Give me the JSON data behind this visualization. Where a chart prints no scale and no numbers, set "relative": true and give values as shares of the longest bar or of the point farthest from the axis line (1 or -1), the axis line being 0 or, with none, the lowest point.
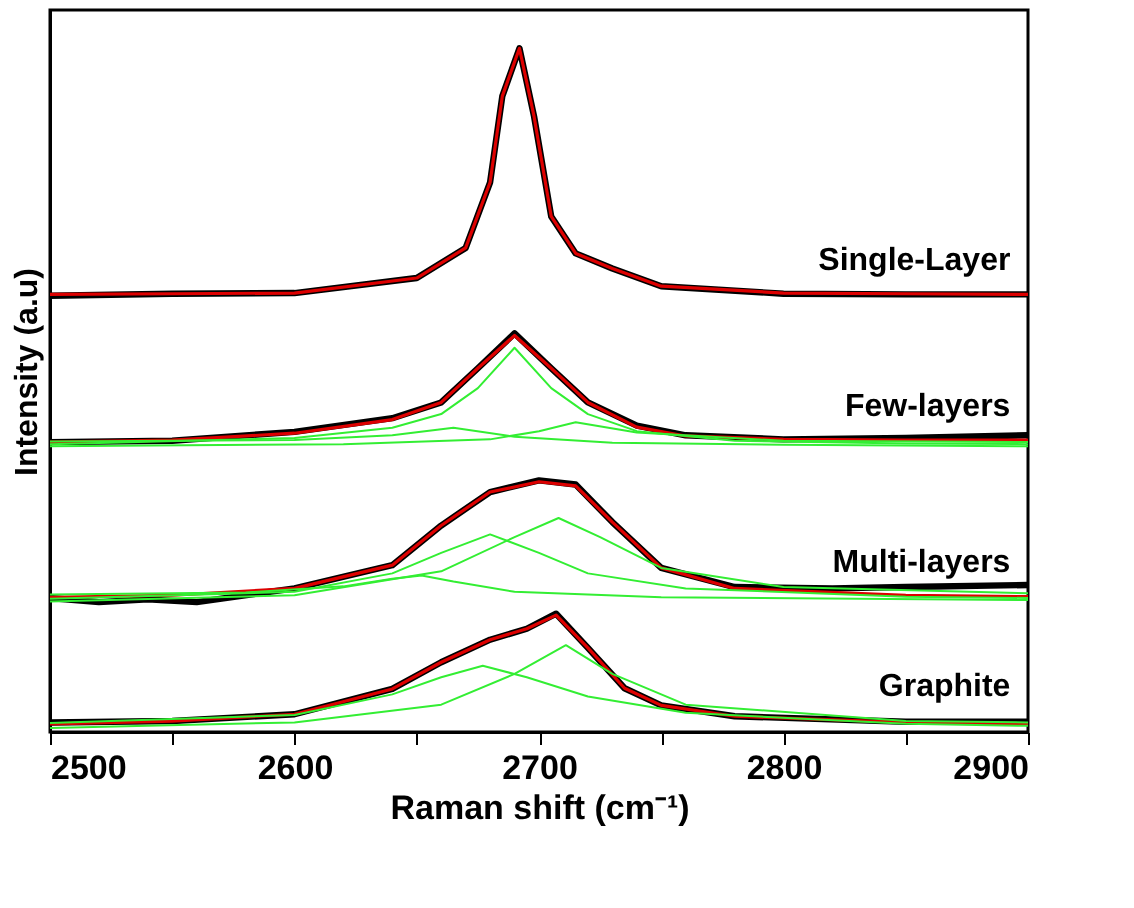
{
  "chart_data": {
    "type": "line",
    "relative": true,
    "xlabel": "Raman shift (cm⁻¹)",
    "ylabel": "Intensity (a.u)",
    "xlim": [
      2500,
      2900
    ],
    "xticks": [
      2500,
      {
        "value": 2550,
        "label": null
      },
      2600,
      {
        "value": 2650,
        "label": null
      },
      2700,
      {
        "value": 2750,
        "label": null
      },
      2800,
      {
        "value": 2850,
        "label": null
      },
      2900
    ],
    "grid": false,
    "legend": false,
    "marker": "none",
    "line_style": "solid",
    "annotations": [
      "Single-Layer",
      "Few-layers",
      "Multi-layers",
      "Graphite"
    ],
    "series": [
      {
        "color": "#000000",
        "x": [
          2500,
          2550,
          2600,
          2650,
          2670,
          2680,
          2685,
          2692,
          2698,
          2705,
          2715,
          2730,
          2750,
          2800,
          2850,
          2900
        ],
        "values": [
          0.638,
          0.641,
          0.642,
          0.664,
          0.708,
          0.804,
          0.93,
          1.0,
          0.9,
          0.754,
          0.7,
          0.678,
          0.652,
          0.641,
          0.64,
          0.64
        ]
      },
      {
        "color": "#000000",
        "x": [
          2500,
          2550,
          2600,
          2640,
          2660,
          2675,
          2690,
          2705,
          2720,
          2740,
          2760,
          2800,
          2850,
          2900
        ],
        "values": [
          0.424,
          0.426,
          0.439,
          0.459,
          0.482,
          0.532,
          0.583,
          0.532,
          0.482,
          0.448,
          0.434,
          0.428,
          0.43,
          0.434
        ]
      },
      {
        "color": "#000000",
        "x": [
          2500,
          2520,
          2540,
          2560,
          2600,
          2640,
          2660,
          2680,
          2700,
          2715,
          2730,
          2750,
          2780,
          2820,
          2850,
          2900
        ],
        "values": [
          0.196,
          0.19,
          0.194,
          0.19,
          0.21,
          0.244,
          0.302,
          0.351,
          0.368,
          0.362,
          0.307,
          0.24,
          0.212,
          0.21,
          0.212,
          0.215
        ]
      },
      {
        "color": "#000000",
        "x": [
          2500,
          2550,
          2600,
          2640,
          2660,
          2680,
          2695,
          2707,
          2720,
          2735,
          2750,
          2780,
          2850,
          2900
        ],
        "values": [
          0.014,
          0.016,
          0.026,
          0.063,
          0.102,
          0.135,
          0.151,
          0.173,
          0.123,
          0.064,
          0.039,
          0.023,
          0.015,
          0.015
        ]
      },
      {
        "color": "#dd0000",
        "x": [
          2500,
          2550,
          2600,
          2650,
          2670,
          2680,
          2685,
          2692,
          2698,
          2705,
          2715,
          2730,
          2750,
          2800,
          2850,
          2900
        ],
        "values": [
          0.64,
          0.641,
          0.642,
          0.664,
          0.708,
          0.804,
          0.93,
          1.0,
          0.9,
          0.754,
          0.7,
          0.678,
          0.652,
          0.642,
          0.641,
          0.64
        ]
      },
      {
        "color": "#dd0000",
        "x": [
          2500,
          2550,
          2600,
          2640,
          2660,
          2675,
          2690,
          2705,
          2720,
          2740,
          2760,
          2800,
          2850,
          2900
        ],
        "values": [
          0.424,
          0.427,
          0.437,
          0.457,
          0.482,
          0.532,
          0.58,
          0.532,
          0.482,
          0.446,
          0.433,
          0.428,
          0.427,
          0.427
        ]
      },
      {
        "color": "#dd0000",
        "x": [
          2500,
          2550,
          2600,
          2640,
          2660,
          2680,
          2700,
          2715,
          2730,
          2750,
          2780,
          2850,
          2900
        ],
        "values": [
          0.197,
          0.2,
          0.21,
          0.244,
          0.302,
          0.351,
          0.366,
          0.36,
          0.307,
          0.24,
          0.21,
          0.2,
          0.198
        ]
      },
      {
        "color": "#dd0000",
        "x": [
          2500,
          2550,
          2600,
          2640,
          2660,
          2680,
          2695,
          2707,
          2720,
          2735,
          2750,
          2780,
          2850,
          2900
        ],
        "values": [
          0.012,
          0.016,
          0.026,
          0.063,
          0.102,
          0.135,
          0.151,
          0.171,
          0.123,
          0.064,
          0.039,
          0.023,
          0.014,
          0.012
        ]
      },
      {
        "color": "#33ee33",
        "x": [
          2500,
          2600,
          2640,
          2660,
          2675,
          2690,
          2705,
          2720,
          2740,
          2780,
          2850,
          2900
        ],
        "values": [
          0.421,
          0.43,
          0.445,
          0.465,
          0.503,
          0.562,
          0.503,
          0.465,
          0.44,
          0.426,
          0.422,
          0.421
        ]
      },
      {
        "color": "#33ee33",
        "x": [
          2500,
          2600,
          2640,
          2665,
          2690,
          2730,
          2800,
          2900
        ],
        "values": [
          0.425,
          0.427,
          0.434,
          0.445,
          0.432,
          0.423,
          0.42,
          0.418
        ]
      },
      {
        "color": "#33ee33",
        "x": [
          2500,
          2620,
          2680,
          2700,
          2715,
          2740,
          2800,
          2900
        ],
        "values": [
          0.418,
          0.421,
          0.428,
          0.44,
          0.453,
          0.438,
          0.426,
          0.424
        ]
      },
      {
        "color": "#33ee33",
        "x": [
          2500,
          2580,
          2620,
          2640,
          2652,
          2665,
          2690,
          2750,
          2900
        ],
        "values": [
          0.201,
          0.204,
          0.213,
          0.224,
          0.229,
          0.22,
          0.205,
          0.197,
          0.193
        ]
      },
      {
        "color": "#33ee33",
        "x": [
          2500,
          2600,
          2640,
          2660,
          2680,
          2700,
          2720,
          2760,
          2850,
          2900
        ],
        "values": [
          0.195,
          0.205,
          0.232,
          0.262,
          0.289,
          0.262,
          0.232,
          0.21,
          0.198,
          0.196
        ]
      },
      {
        "color": "#33ee33",
        "x": [
          2500,
          2600,
          2660,
          2690,
          2708,
          2725,
          2750,
          2800,
          2900
        ],
        "values": [
          0.191,
          0.2,
          0.235,
          0.285,
          0.313,
          0.285,
          0.24,
          0.212,
          0.203
        ]
      },
      {
        "color": "#33ee33",
        "x": [
          2500,
          2600,
          2640,
          2660,
          2677,
          2695,
          2720,
          2760,
          2850,
          2900
        ],
        "values": [
          0.013,
          0.025,
          0.055,
          0.08,
          0.097,
          0.08,
          0.052,
          0.028,
          0.012,
          0.009
        ]
      },
      {
        "color": "#33ee33",
        "x": [
          2500,
          2600,
          2660,
          2690,
          2711,
          2730,
          2760,
          2850,
          2900
        ],
        "values": [
          0.006,
          0.014,
          0.04,
          0.085,
          0.127,
          0.085,
          0.04,
          0.016,
          0.014
        ]
      }
    ]
  }
}
